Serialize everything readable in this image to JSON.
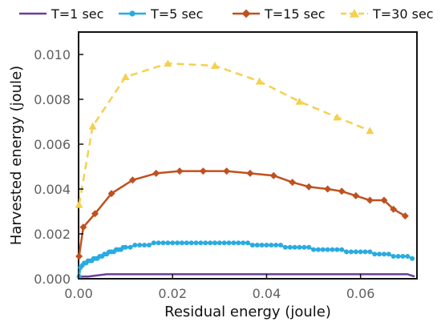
{
  "chart_data": {
    "type": "line",
    "xlabel": "Residual energy (joule)",
    "ylabel": "Harvested energy (joule)",
    "xlim": [
      0,
      0.072
    ],
    "ylim": [
      0,
      0.011
    ],
    "x_ticks": [
      "0.00",
      "0.02",
      "0.04",
      "0.06"
    ],
    "x_tick_values": [
      0,
      0.02,
      0.04,
      0.06
    ],
    "y_ticks": [
      "0.000",
      "0.002",
      "0.004",
      "0.006",
      "0.008",
      "0.010"
    ],
    "y_tick_values": [
      0,
      0.002,
      0.004,
      0.006,
      0.008,
      0.01
    ],
    "grid": false,
    "legend_position": "top",
    "series": [
      {
        "name": "T=1 sec",
        "color": "#6a3d9a",
        "marker": "none",
        "dash": "solid",
        "points": [
          [
            0.0,
            0.0
          ],
          [
            0.0005,
            0.0001
          ],
          [
            0.002,
            0.0001
          ],
          [
            0.006,
            0.0002
          ],
          [
            0.01,
            0.0002
          ],
          [
            0.02,
            0.0002
          ],
          [
            0.03,
            0.0002
          ],
          [
            0.04,
            0.0002
          ],
          [
            0.05,
            0.0002
          ],
          [
            0.06,
            0.0002
          ],
          [
            0.07,
            0.0002
          ],
          [
            0.0715,
            0.0001
          ]
        ]
      },
      {
        "name": "T=5 sec",
        "color": "#29abe2",
        "marker": "circle",
        "dash": "solid",
        "points": [
          [
            0.0001,
            0.0001
          ],
          [
            0.0004,
            0.0005
          ],
          [
            0.0008,
            0.0006
          ],
          [
            0.0012,
            0.0007
          ],
          [
            0.0016,
            0.0007
          ],
          [
            0.002,
            0.0008
          ],
          [
            0.0024,
            0.0008
          ],
          [
            0.0028,
            0.0008
          ],
          [
            0.0032,
            0.0009
          ],
          [
            0.0036,
            0.0009
          ],
          [
            0.004,
            0.0009
          ],
          [
            0.0045,
            0.001
          ],
          [
            0.005,
            0.001
          ],
          [
            0.0055,
            0.0011
          ],
          [
            0.006,
            0.0011
          ],
          [
            0.0065,
            0.0012
          ],
          [
            0.007,
            0.0012
          ],
          [
            0.0075,
            0.0012
          ],
          [
            0.008,
            0.0013
          ],
          [
            0.0085,
            0.0013
          ],
          [
            0.009,
            0.0013
          ],
          [
            0.0095,
            0.0014
          ],
          [
            0.01,
            0.0014
          ],
          [
            0.011,
            0.0014
          ],
          [
            0.012,
            0.0015
          ],
          [
            0.013,
            0.0015
          ],
          [
            0.014,
            0.0015
          ],
          [
            0.015,
            0.0015
          ],
          [
            0.016,
            0.0016
          ],
          [
            0.017,
            0.0016
          ],
          [
            0.018,
            0.0016
          ],
          [
            0.019,
            0.0016
          ],
          [
            0.02,
            0.0016
          ],
          [
            0.021,
            0.0016
          ],
          [
            0.022,
            0.0016
          ],
          [
            0.023,
            0.0016
          ],
          [
            0.024,
            0.0016
          ],
          [
            0.025,
            0.0016
          ],
          [
            0.026,
            0.0016
          ],
          [
            0.027,
            0.0016
          ],
          [
            0.028,
            0.0016
          ],
          [
            0.029,
            0.0016
          ],
          [
            0.03,
            0.0016
          ],
          [
            0.031,
            0.0016
          ],
          [
            0.032,
            0.0016
          ],
          [
            0.033,
            0.0016
          ],
          [
            0.034,
            0.0016
          ],
          [
            0.035,
            0.0016
          ],
          [
            0.036,
            0.0016
          ],
          [
            0.037,
            0.0015
          ],
          [
            0.038,
            0.0015
          ],
          [
            0.039,
            0.0015
          ],
          [
            0.04,
            0.0015
          ],
          [
            0.041,
            0.0015
          ],
          [
            0.042,
            0.0015
          ],
          [
            0.043,
            0.0015
          ],
          [
            0.044,
            0.0014
          ],
          [
            0.045,
            0.0014
          ],
          [
            0.046,
            0.0014
          ],
          [
            0.047,
            0.0014
          ],
          [
            0.048,
            0.0014
          ],
          [
            0.049,
            0.0014
          ],
          [
            0.05,
            0.0013
          ],
          [
            0.051,
            0.0013
          ],
          [
            0.052,
            0.0013
          ],
          [
            0.053,
            0.0013
          ],
          [
            0.054,
            0.0013
          ],
          [
            0.055,
            0.0013
          ],
          [
            0.056,
            0.0013
          ],
          [
            0.057,
            0.0012
          ],
          [
            0.058,
            0.0012
          ],
          [
            0.059,
            0.0012
          ],
          [
            0.06,
            0.0012
          ],
          [
            0.061,
            0.0012
          ],
          [
            0.062,
            0.0012
          ],
          [
            0.063,
            0.0011
          ],
          [
            0.064,
            0.0011
          ],
          [
            0.065,
            0.0011
          ],
          [
            0.066,
            0.0011
          ],
          [
            0.067,
            0.001
          ],
          [
            0.068,
            0.001
          ],
          [
            0.069,
            0.001
          ],
          [
            0.07,
            0.001
          ],
          [
            0.071,
            0.0009
          ]
        ]
      },
      {
        "name": "T=15 sec",
        "color": "#c0501f",
        "marker": "diamond",
        "dash": "solid",
        "points": [
          [
            0.0001,
            0.001
          ],
          [
            0.001,
            0.0023
          ],
          [
            0.0035,
            0.0029
          ],
          [
            0.007,
            0.0038
          ],
          [
            0.0115,
            0.0044
          ],
          [
            0.0165,
            0.0047
          ],
          [
            0.0215,
            0.0048
          ],
          [
            0.0265,
            0.0048
          ],
          [
            0.0315,
            0.0048
          ],
          [
            0.0365,
            0.0047
          ],
          [
            0.0415,
            0.0046
          ],
          [
            0.0455,
            0.0043
          ],
          [
            0.049,
            0.0041
          ],
          [
            0.053,
            0.004
          ],
          [
            0.056,
            0.0039
          ],
          [
            0.059,
            0.0037
          ],
          [
            0.062,
            0.0035
          ],
          [
            0.065,
            0.0035
          ],
          [
            0.067,
            0.0031
          ],
          [
            0.0695,
            0.0028
          ]
        ]
      },
      {
        "name": "T=30 sec",
        "color": "#f5d04f",
        "marker": "triangle",
        "dash": "dashed",
        "points": [
          [
            0.0001,
            0.0033
          ],
          [
            0.003,
            0.0068
          ],
          [
            0.01,
            0.009
          ],
          [
            0.019,
            0.0096
          ],
          [
            0.029,
            0.0095
          ],
          [
            0.0385,
            0.0088
          ],
          [
            0.047,
            0.0079
          ],
          [
            0.055,
            0.0072
          ],
          [
            0.062,
            0.0066
          ]
        ]
      }
    ]
  }
}
